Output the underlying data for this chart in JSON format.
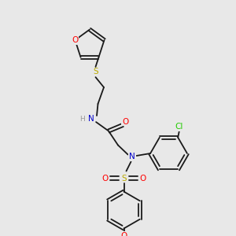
{
  "background_color": "#e8e8e8",
  "bond_color": "#1a1a1a",
  "atom_colors": {
    "O": "#ff0000",
    "N": "#0000cc",
    "S": "#bbaa00",
    "Cl": "#22cc00",
    "H": "#999999",
    "C": "#1a1a1a"
  },
  "figsize": [
    3.0,
    3.0
  ],
  "dpi": 100,
  "xlim": [
    0,
    10
  ],
  "ylim": [
    0,
    10
  ],
  "bond_lw": 1.3,
  "font_size": 7.0
}
